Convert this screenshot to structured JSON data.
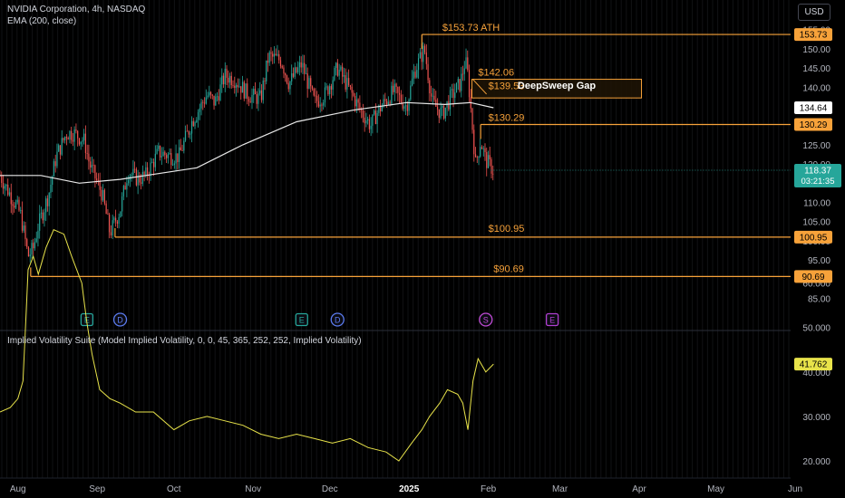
{
  "header": {
    "title": "NVIDIA Corporation, 4h, NASDAQ",
    "indicator": "EMA (200, close)",
    "currency_button": "USD"
  },
  "iv_panel": {
    "label": "Implied Volatility Suite (Model Implied Volatility, 0, 0, 45, 365, 252, 252, Implied Volatility)",
    "current_value_badge": "41.762",
    "ticks": [
      "70.000",
      "60.000",
      "50.000",
      "40.000",
      "30.000",
      "20.000"
    ]
  },
  "price_axis": {
    "ticks": [
      "155.00",
      "150.00",
      "145.00",
      "140.00",
      "135.00",
      "130.00",
      "125.00",
      "120.00",
      "115.00",
      "110.00",
      "105.00",
      "100.00",
      "95.00",
      "90.00",
      "85.00"
    ]
  },
  "time_axis": {
    "ticks": [
      "Aug",
      "Sep",
      "Oct",
      "Nov",
      "Dec",
      "2025",
      "Feb",
      "Mar",
      "Apr",
      "May",
      "Jun"
    ]
  },
  "badges": {
    "ath": "153.73",
    "ema": "134.64",
    "lvl130": "130.29",
    "current_price": "118.37",
    "countdown": "03:21:35",
    "lvl101": "100.95",
    "lvl90": "90.69"
  },
  "annotations": {
    "ath": "$153.73 ATH",
    "gap_top": "$142.06",
    "gap_box": "DeepSweep Gap",
    "gap_bottom": "$139.53",
    "lvl130": "$130.29",
    "lvl101": "$100.95",
    "lvl90": "$90.69"
  },
  "events": [
    {
      "type": "earnings",
      "label": "E"
    },
    {
      "type": "dividend",
      "label": "D"
    },
    {
      "type": "earnings",
      "label": "E"
    },
    {
      "type": "dividend",
      "label": "D"
    },
    {
      "type": "split",
      "label": "S"
    },
    {
      "type": "earnings-upcoming",
      "label": "E"
    }
  ],
  "colors": {
    "background": "#000000",
    "level_line": "#f7a23a",
    "ema": "#e8e8e8",
    "candle_up": "#26a69a",
    "candle_down": "#ef5350",
    "iv_line": "#e8e34a",
    "current_price_badge": "#26a69a",
    "earnings_icon": "#26a69a",
    "dividend_icon": "#5b7cf0",
    "upcoming_earnings_icon": "#b03fd1"
  },
  "chart_data": {
    "type": "candlestick",
    "symbol": "NVIDIA Corporation",
    "interval": "4h",
    "exchange": "NASDAQ",
    "xrange": [
      "2024-07-25",
      "2025-06-20"
    ],
    "ylim": [
      85,
      156
    ],
    "current_price": 118.37,
    "ema200_last": 134.64,
    "levels": [
      153.73,
      142.06,
      139.53,
      130.29,
      100.95,
      90.69
    ],
    "gap_zone": {
      "low": 139.53,
      "high": 142.06
    },
    "price_path": [
      [
        "2024-07-25",
        117
      ],
      [
        "2024-07-29",
        112
      ],
      [
        "2024-08-02",
        107
      ],
      [
        "2024-08-05",
        96
      ],
      [
        "2024-08-07",
        98
      ],
      [
        "2024-08-09",
        104
      ],
      [
        "2024-08-13",
        112
      ],
      [
        "2024-08-16",
        122
      ],
      [
        "2024-08-20",
        128
      ],
      [
        "2024-08-23",
        128
      ],
      [
        "2024-08-27",
        126
      ],
      [
        "2024-08-29",
        120
      ],
      [
        "2024-09-03",
        112
      ],
      [
        "2024-09-06",
        102
      ],
      [
        "2024-09-10",
        108
      ],
      [
        "2024-09-13",
        118
      ],
      [
        "2024-09-17",
        116
      ],
      [
        "2024-09-20",
        117
      ],
      [
        "2024-09-25",
        123
      ],
      [
        "2024-09-30",
        122
      ],
      [
        "2024-10-03",
        122
      ],
      [
        "2024-10-08",
        131
      ],
      [
        "2024-10-14",
        138
      ],
      [
        "2024-10-17",
        136
      ],
      [
        "2024-10-21",
        143
      ],
      [
        "2024-10-25",
        142
      ],
      [
        "2024-10-30",
        138
      ],
      [
        "2024-11-04",
        137
      ],
      [
        "2024-11-07",
        148
      ],
      [
        "2024-11-12",
        147
      ],
      [
        "2024-11-15",
        141
      ],
      [
        "2024-11-20",
        146
      ],
      [
        "2024-11-25",
        136
      ],
      [
        "2024-11-29",
        138
      ],
      [
        "2024-12-04",
        145
      ],
      [
        "2024-12-09",
        139
      ],
      [
        "2024-12-13",
        134
      ],
      [
        "2024-12-17",
        130
      ],
      [
        "2024-12-20",
        134
      ],
      [
        "2024-12-26",
        139
      ],
      [
        "2024-12-31",
        135
      ],
      [
        "2025-01-03",
        144
      ],
      [
        "2025-01-07",
        150
      ],
      [
        "2025-01-10",
        136
      ],
      [
        "2025-01-14",
        133
      ],
      [
        "2025-01-17",
        137
      ],
      [
        "2025-01-21",
        141
      ],
      [
        "2025-01-23",
        147
      ],
      [
        "2025-01-24",
        143
      ],
      [
        "2025-01-27",
        120
      ],
      [
        "2025-01-29",
        126
      ],
      [
        "2025-01-31",
        121
      ],
      [
        "2025-02-03",
        118.37
      ]
    ],
    "ema200_path": [
      [
        "2024-07-25",
        117
      ],
      [
        "2024-08-10",
        117
      ],
      [
        "2024-08-25",
        115
      ],
      [
        "2024-09-10",
        116
      ],
      [
        "2024-09-20",
        117
      ],
      [
        "2024-10-10",
        119
      ],
      [
        "2024-10-28",
        125
      ],
      [
        "2024-11-18",
        131
      ],
      [
        "2024-12-10",
        134
      ],
      [
        "2024-12-31",
        136
      ],
      [
        "2025-01-15",
        135.5
      ],
      [
        "2025-01-25",
        136
      ],
      [
        "2025-02-03",
        134.64
      ]
    ],
    "implied_volatility": {
      "ylim": [
        18,
        73
      ],
      "ticks": [
        70,
        60,
        50,
        40,
        30,
        20
      ],
      "last": 41.762,
      "path": [
        [
          "2024-07-25",
          31
        ],
        [
          "2024-07-29",
          32
        ],
        [
          "2024-08-01",
          34
        ],
        [
          "2024-08-03",
          38
        ],
        [
          "2024-08-05",
          63
        ],
        [
          "2024-08-07",
          66
        ],
        [
          "2024-08-09",
          62
        ],
        [
          "2024-08-12",
          68
        ],
        [
          "2024-08-15",
          72
        ],
        [
          "2024-08-19",
          71
        ],
        [
          "2024-08-22",
          66
        ],
        [
          "2024-08-26",
          60
        ],
        [
          "2024-08-28",
          51
        ],
        [
          "2024-08-30",
          44
        ],
        [
          "2024-09-02",
          36
        ],
        [
          "2024-09-06",
          34
        ],
        [
          "2024-09-10",
          33
        ],
        [
          "2024-09-16",
          31
        ],
        [
          "2024-09-23",
          31
        ],
        [
          "2024-10-01",
          27
        ],
        [
          "2024-10-07",
          29
        ],
        [
          "2024-10-14",
          30
        ],
        [
          "2024-10-21",
          29
        ],
        [
          "2024-10-28",
          28
        ],
        [
          "2024-11-04",
          26
        ],
        [
          "2024-11-11",
          25
        ],
        [
          "2024-11-18",
          26
        ],
        [
          "2024-11-25",
          25
        ],
        [
          "2024-12-02",
          24
        ],
        [
          "2024-12-09",
          25
        ],
        [
          "2024-12-16",
          23
        ],
        [
          "2024-12-23",
          22
        ],
        [
          "2024-12-28",
          20
        ],
        [
          "2025-01-02",
          24
        ],
        [
          "2025-01-06",
          27
        ],
        [
          "2025-01-09",
          30
        ],
        [
          "2025-01-13",
          33
        ],
        [
          "2025-01-16",
          36
        ],
        [
          "2025-01-20",
          35
        ],
        [
          "2025-01-22",
          33
        ],
        [
          "2025-01-24",
          27
        ],
        [
          "2025-01-26",
          38
        ],
        [
          "2025-01-28",
          43
        ],
        [
          "2025-01-31",
          40
        ],
        [
          "2025-02-03",
          41.762
        ]
      ]
    }
  }
}
